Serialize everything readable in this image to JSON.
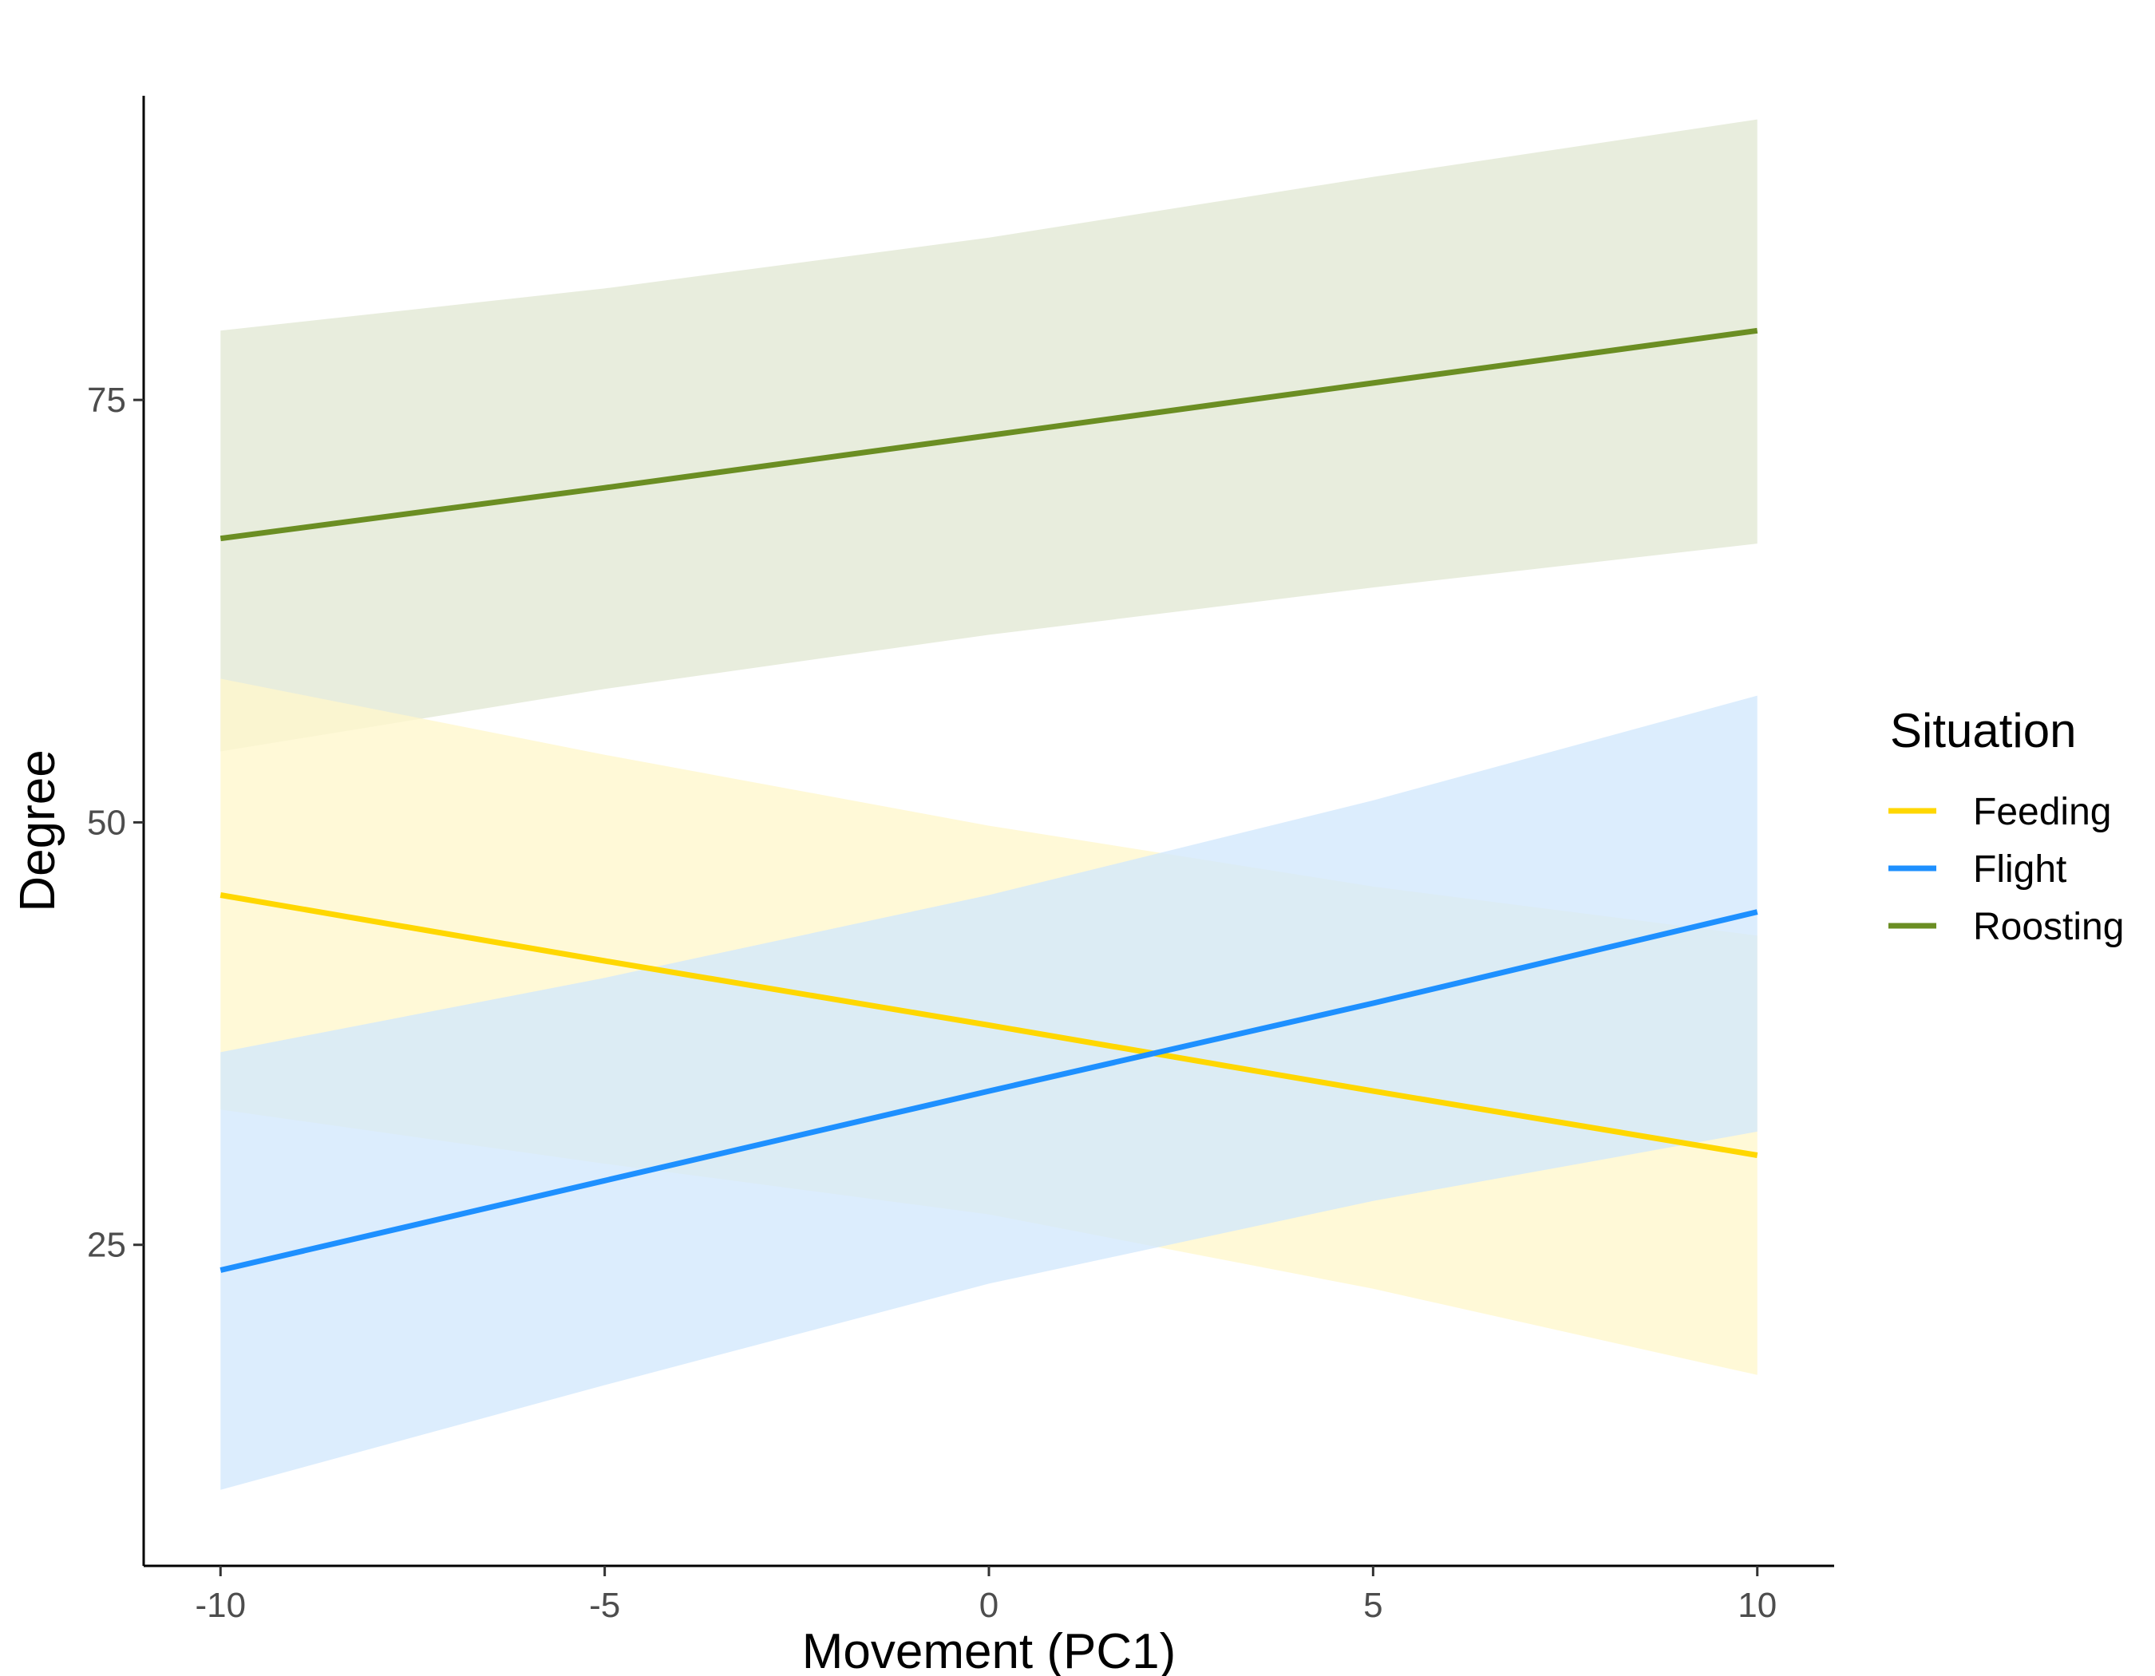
{
  "chart_data": {
    "type": "line",
    "xlabel": "Movement (PC1)",
    "ylabel": "Degree",
    "xlim": [
      -11,
      11
    ],
    "ylim": [
      6,
      93
    ],
    "x_ticks": [
      -10,
      -5,
      0,
      5,
      10
    ],
    "x_tick_labels": [
      "-10",
      "-5",
      "0",
      "5",
      "10"
    ],
    "y_ticks": [
      25,
      50,
      75
    ],
    "y_tick_labels": [
      "25",
      "50",
      "75"
    ],
    "grid": false,
    "legend": {
      "title": "Situation",
      "placement": "right"
    },
    "series": [
      {
        "name": "Roosting",
        "color": "#6b8e23",
        "band_color": "#e1e8d4",
        "x": [
          -10,
          -5,
          0,
          5,
          10
        ],
        "y": [
          66.8,
          69.8,
          72.9,
          76.0,
          79.1
        ],
        "lower": [
          54.2,
          57.9,
          61.1,
          63.9,
          66.5
        ],
        "upper": [
          79.1,
          81.6,
          84.6,
          88.2,
          91.6
        ]
      },
      {
        "name": "Feeding",
        "color": "#ffd700",
        "band_color": "#fff7cc",
        "x": [
          -10,
          -5,
          0,
          5,
          10
        ],
        "y": [
          45.7,
          41.8,
          38.0,
          34.1,
          30.3
        ],
        "lower": [
          33.0,
          29.8,
          26.8,
          22.4,
          17.3
        ],
        "upper": [
          58.5,
          54.0,
          49.8,
          46.2,
          43.3
        ]
      },
      {
        "name": "Flight",
        "color": "#1e90ff",
        "band_color": "#d2e8fc",
        "x": [
          -10,
          -5,
          0,
          5,
          10
        ],
        "y": [
          23.5,
          28.8,
          34.1,
          39.3,
          44.7
        ],
        "lower": [
          10.5,
          16.7,
          22.7,
          27.6,
          31.7
        ],
        "upper": [
          36.4,
          40.8,
          45.7,
          51.3,
          57.5
        ]
      }
    ]
  }
}
